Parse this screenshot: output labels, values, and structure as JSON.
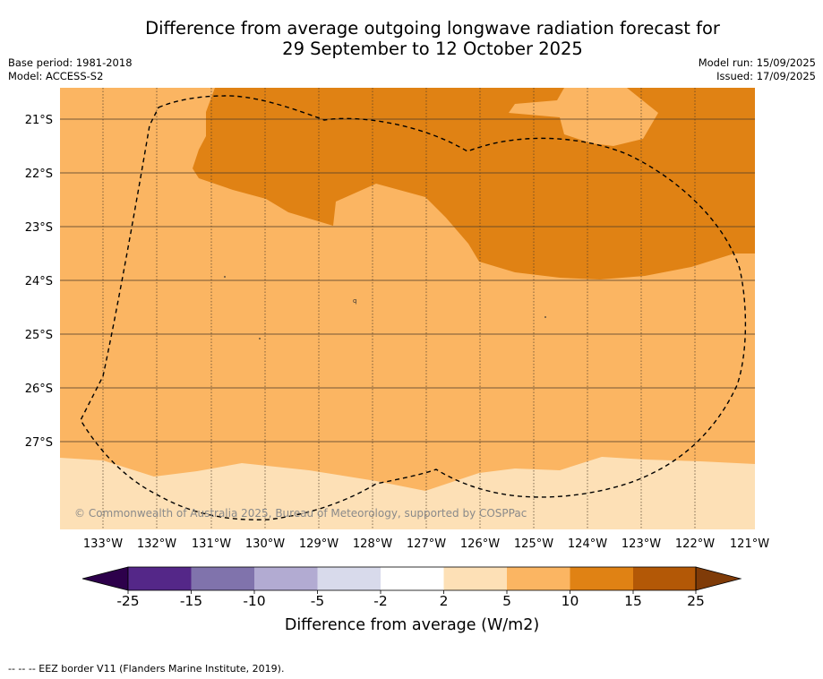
{
  "header": {
    "title_line1": "Difference from average outgoing longwave radiation forecast for",
    "title_line2": "29 September to 12 October 2025",
    "base_period": "Base period: 1981-2018",
    "model": "Model: ACCESS-S2",
    "model_run": "Model run: 15/09/2025",
    "issued": "Issued: 17/09/2025"
  },
  "map": {
    "lat_labels": [
      "21°S",
      "22°S",
      "23°S",
      "24°S",
      "25°S",
      "26°S",
      "27°S"
    ],
    "lon_labels": [
      "133°W",
      "132°W",
      "131°W",
      "130°W",
      "129°W",
      "128°W",
      "127°W",
      "126°W",
      "125°W",
      "124°W",
      "123°W",
      "122°W",
      "121°W"
    ],
    "copyright": "© Commonwealth of Australia 2025, Bureau of Meteorology, supported by COSPPac",
    "colors": {
      "band_2_5": "#fde0b6",
      "band_5_10": "#fbb562",
      "band_10_15": "#e08214",
      "band_15_25": "#b35806"
    }
  },
  "colorbar": {
    "ticks": [
      "-25",
      "-15",
      "-10",
      "-5",
      "-2",
      "2",
      "5",
      "10",
      "15",
      "25"
    ],
    "label": "Difference from average (W/m2)",
    "colors": [
      "#2d004b",
      "#542788",
      "#8073ac",
      "#b2abd2",
      "#d8daeb",
      "#ffffff",
      "#fde0b6",
      "#fbb562",
      "#e08214",
      "#b35806",
      "#7f3b08"
    ]
  },
  "footer": {
    "legend_text": "-- -- -- EEZ border V11 (Flanders Marine Institute, 2019)."
  }
}
